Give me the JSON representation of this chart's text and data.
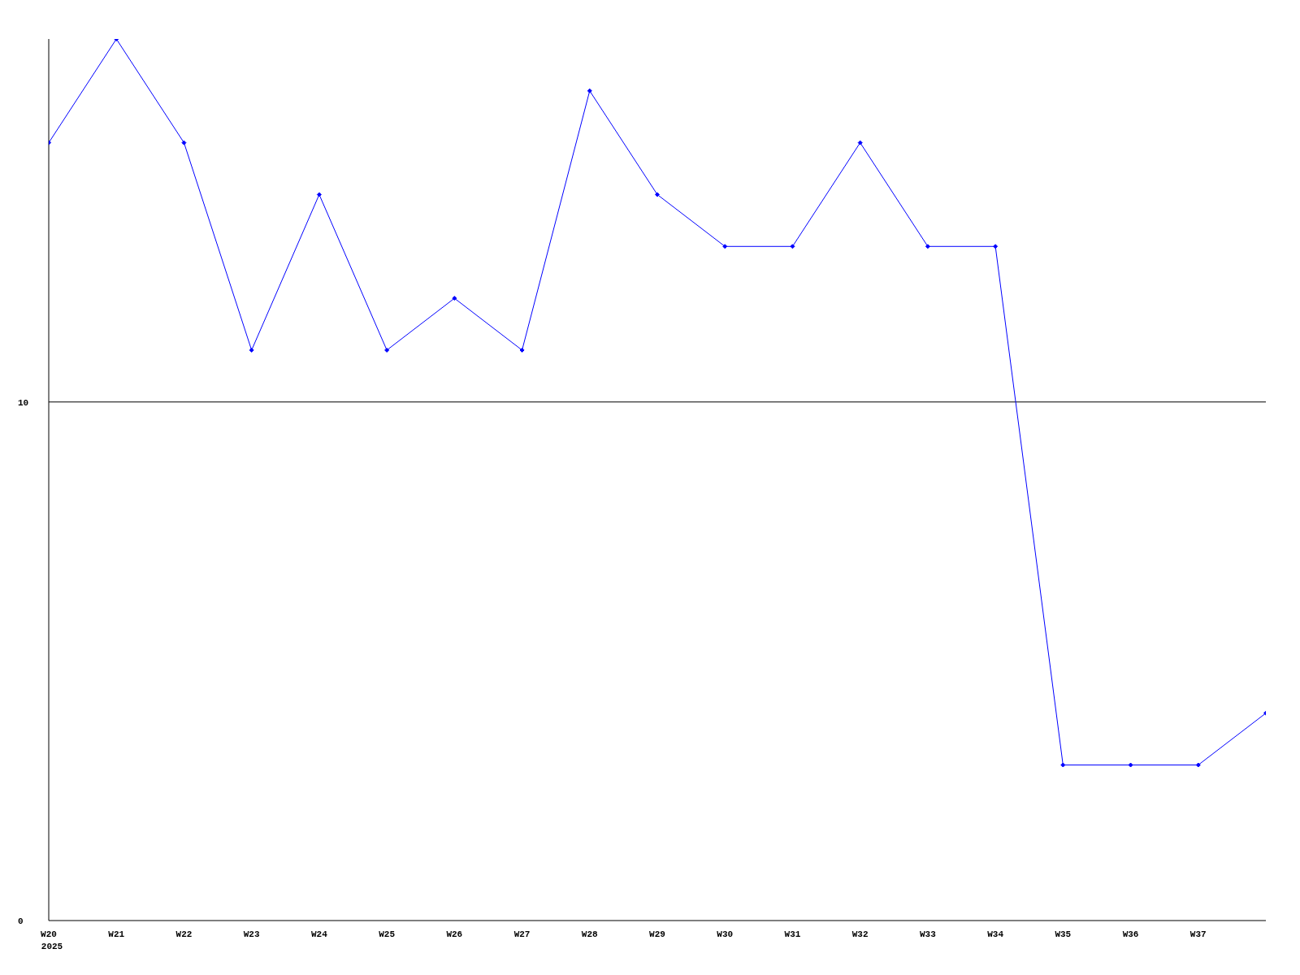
{
  "chart_data": {
    "type": "line",
    "categories": [
      "W20",
      "W21",
      "W22",
      "W23",
      "W24",
      "W25",
      "W26",
      "W27",
      "W28",
      "W29",
      "W30",
      "W31",
      "W32",
      "W33",
      "W34",
      "W35",
      "W36",
      "W37",
      null
    ],
    "series": [
      {
        "color": "#0000ff",
        "values": [
          15,
          17,
          15,
          11,
          14,
          11,
          12,
          11,
          16,
          14,
          13,
          13,
          15,
          13,
          13,
          3,
          3,
          3,
          4
        ]
      }
    ],
    "ylim": [
      0,
      17
    ],
    "yticks": [
      0,
      10
    ],
    "grid": "y",
    "marker": "diamond",
    "annotations": [
      "2025"
    ]
  }
}
